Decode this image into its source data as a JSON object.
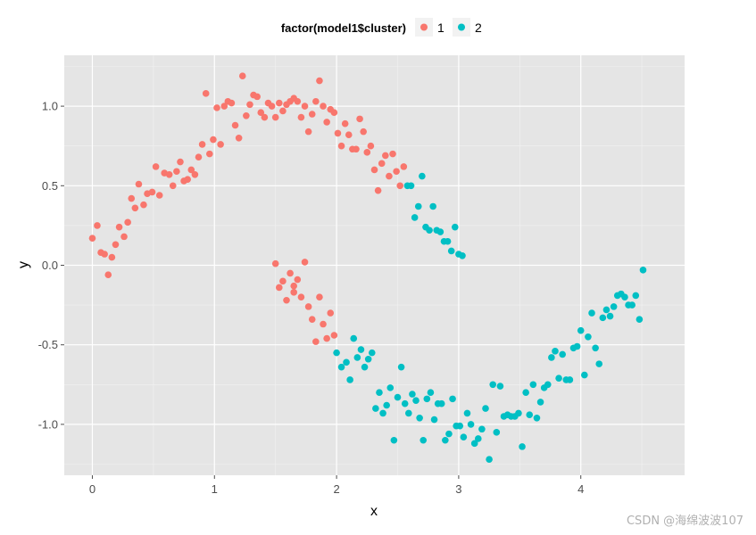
{
  "chart_data": {
    "type": "scatter",
    "xlabel": "x",
    "ylabel": "y",
    "xlim": [
      -0.23,
      4.85
    ],
    "ylim": [
      -1.32,
      1.32
    ],
    "x_ticks": [
      0,
      1,
      2,
      3,
      4
    ],
    "y_ticks": [
      -1.0,
      -0.5,
      0.0,
      0.5,
      1.0
    ],
    "x_tick_labels": [
      "0",
      "1",
      "2",
      "3",
      "4"
    ],
    "y_tick_labels": [
      "-1.0",
      "-0.5",
      "0.0",
      "0.5",
      "1.0"
    ],
    "grid": true,
    "legend": {
      "title": "factor(model1$cluster)",
      "placement": "top",
      "entries": [
        "1",
        "2"
      ]
    },
    "colors": {
      "1": "#f8766d",
      "2": "#00bfc4"
    },
    "series": [
      {
        "name": "1",
        "points": [
          [
            0.0,
            0.17
          ],
          [
            0.04,
            0.25
          ],
          [
            0.07,
            0.08
          ],
          [
            0.1,
            0.07
          ],
          [
            0.13,
            -0.06
          ],
          [
            0.16,
            0.05
          ],
          [
            0.19,
            0.13
          ],
          [
            0.22,
            0.24
          ],
          [
            0.26,
            0.18
          ],
          [
            0.29,
            0.27
          ],
          [
            0.32,
            0.42
          ],
          [
            0.35,
            0.36
          ],
          [
            0.38,
            0.51
          ],
          [
            0.42,
            0.38
          ],
          [
            0.45,
            0.45
          ],
          [
            0.49,
            0.46
          ],
          [
            0.52,
            0.62
          ],
          [
            0.55,
            0.44
          ],
          [
            0.59,
            0.58
          ],
          [
            0.63,
            0.57
          ],
          [
            0.66,
            0.5
          ],
          [
            0.69,
            0.59
          ],
          [
            0.72,
            0.65
          ],
          [
            0.75,
            0.53
          ],
          [
            0.78,
            0.54
          ],
          [
            0.81,
            0.6
          ],
          [
            0.84,
            0.57
          ],
          [
            0.87,
            0.68
          ],
          [
            0.9,
            0.76
          ],
          [
            0.93,
            1.08
          ],
          [
            0.96,
            0.7
          ],
          [
            0.99,
            0.79
          ],
          [
            1.02,
            0.99
          ],
          [
            1.05,
            0.76
          ],
          [
            1.08,
            1.0
          ],
          [
            1.11,
            1.03
          ],
          [
            1.14,
            1.02
          ],
          [
            1.17,
            0.88
          ],
          [
            1.2,
            0.8
          ],
          [
            1.23,
            1.19
          ],
          [
            1.26,
            0.94
          ],
          [
            1.29,
            1.01
          ],
          [
            1.32,
            1.07
          ],
          [
            1.35,
            1.06
          ],
          [
            1.38,
            0.96
          ],
          [
            1.41,
            0.93
          ],
          [
            1.44,
            1.02
          ],
          [
            1.47,
            1.0
          ],
          [
            1.5,
            0.93
          ],
          [
            1.53,
            1.02
          ],
          [
            1.56,
            0.97
          ],
          [
            1.59,
            1.01
          ],
          [
            1.62,
            1.03
          ],
          [
            1.65,
            1.05
          ],
          [
            1.68,
            1.03
          ],
          [
            1.71,
            0.93
          ],
          [
            1.74,
            1.0
          ],
          [
            1.77,
            0.84
          ],
          [
            1.8,
            0.95
          ],
          [
            1.83,
            1.03
          ],
          [
            1.86,
            1.16
          ],
          [
            1.89,
            1.0
          ],
          [
            1.92,
            0.9
          ],
          [
            1.95,
            0.98
          ],
          [
            1.98,
            0.96
          ],
          [
            2.01,
            0.83
          ],
          [
            2.04,
            0.75
          ],
          [
            2.07,
            0.89
          ],
          [
            2.1,
            0.82
          ],
          [
            2.13,
            0.73
          ],
          [
            2.16,
            0.73
          ],
          [
            2.19,
            0.92
          ],
          [
            2.22,
            0.84
          ],
          [
            2.25,
            0.71
          ],
          [
            2.28,
            0.75
          ],
          [
            2.31,
            0.6
          ],
          [
            2.34,
            0.47
          ],
          [
            2.37,
            0.64
          ],
          [
            2.4,
            0.69
          ],
          [
            2.43,
            0.56
          ],
          [
            2.46,
            0.7
          ],
          [
            2.49,
            0.59
          ],
          [
            2.52,
            0.5
          ],
          [
            2.55,
            0.62
          ],
          [
            1.5,
            0.01
          ],
          [
            1.53,
            -0.14
          ],
          [
            1.56,
            -0.1
          ],
          [
            1.59,
            -0.22
          ],
          [
            1.62,
            -0.05
          ],
          [
            1.65,
            -0.17
          ],
          [
            1.68,
            -0.09
          ],
          [
            1.71,
            -0.2
          ],
          [
            1.74,
            0.02
          ],
          [
            1.77,
            -0.26
          ],
          [
            1.8,
            -0.34
          ],
          [
            1.83,
            -0.48
          ],
          [
            1.86,
            -0.2
          ],
          [
            1.89,
            -0.37
          ],
          [
            1.92,
            -0.46
          ],
          [
            1.95,
            -0.3
          ],
          [
            1.98,
            -0.44
          ],
          [
            1.65,
            -0.13
          ]
        ]
      },
      {
        "name": "2",
        "points": [
          [
            2.58,
            0.5
          ],
          [
            2.61,
            0.5
          ],
          [
            2.64,
            0.3
          ],
          [
            2.67,
            0.37
          ],
          [
            2.7,
            0.56
          ],
          [
            2.73,
            0.24
          ],
          [
            2.76,
            0.22
          ],
          [
            2.79,
            0.37
          ],
          [
            2.82,
            0.22
          ],
          [
            2.85,
            0.21
          ],
          [
            2.88,
            0.15
          ],
          [
            2.91,
            0.15
          ],
          [
            2.94,
            0.09
          ],
          [
            2.97,
            0.24
          ],
          [
            3.0,
            0.07
          ],
          [
            3.03,
            0.06
          ],
          [
            2.0,
            -0.55
          ],
          [
            2.04,
            -0.64
          ],
          [
            2.08,
            -0.61
          ],
          [
            2.11,
            -0.72
          ],
          [
            2.14,
            -0.46
          ],
          [
            2.17,
            -0.58
          ],
          [
            2.2,
            -0.53
          ],
          [
            2.23,
            -0.64
          ],
          [
            2.26,
            -0.59
          ],
          [
            2.29,
            -0.55
          ],
          [
            2.32,
            -0.9
          ],
          [
            2.35,
            -0.8
          ],
          [
            2.38,
            -0.93
          ],
          [
            2.41,
            -0.88
          ],
          [
            2.44,
            -0.77
          ],
          [
            2.47,
            -1.1
          ],
          [
            2.5,
            -0.83
          ],
          [
            2.53,
            -0.64
          ],
          [
            2.56,
            -0.87
          ],
          [
            2.59,
            -0.93
          ],
          [
            2.62,
            -0.81
          ],
          [
            2.65,
            -0.85
          ],
          [
            2.68,
            -0.96
          ],
          [
            2.71,
            -1.1
          ],
          [
            2.74,
            -0.84
          ],
          [
            2.77,
            -0.8
          ],
          [
            2.8,
            -0.97
          ],
          [
            2.83,
            -0.87
          ],
          [
            2.86,
            -0.87
          ],
          [
            2.89,
            -1.1
          ],
          [
            2.92,
            -1.06
          ],
          [
            2.95,
            -0.84
          ],
          [
            2.98,
            -1.01
          ],
          [
            3.01,
            -1.01
          ],
          [
            3.04,
            -1.08
          ],
          [
            3.07,
            -0.93
          ],
          [
            3.1,
            -1.0
          ],
          [
            3.13,
            -1.12
          ],
          [
            3.16,
            -1.09
          ],
          [
            3.19,
            -1.03
          ],
          [
            3.22,
            -0.9
          ],
          [
            3.25,
            -1.22
          ],
          [
            3.28,
            -0.75
          ],
          [
            3.31,
            -1.05
          ],
          [
            3.34,
            -0.76
          ],
          [
            3.37,
            -0.95
          ],
          [
            3.4,
            -0.94
          ],
          [
            3.43,
            -0.95
          ],
          [
            3.46,
            -0.95
          ],
          [
            3.49,
            -0.93
          ],
          [
            3.52,
            -1.14
          ],
          [
            3.55,
            -0.8
          ],
          [
            3.58,
            -0.94
          ],
          [
            3.61,
            -0.75
          ],
          [
            3.64,
            -0.96
          ],
          [
            3.67,
            -0.86
          ],
          [
            3.7,
            -0.77
          ],
          [
            3.73,
            -0.75
          ],
          [
            3.76,
            -0.58
          ],
          [
            3.79,
            -0.54
          ],
          [
            3.82,
            -0.71
          ],
          [
            3.85,
            -0.56
          ],
          [
            3.88,
            -0.72
          ],
          [
            3.91,
            -0.72
          ],
          [
            3.94,
            -0.52
          ],
          [
            3.97,
            -0.51
          ],
          [
            4.0,
            -0.41
          ],
          [
            4.03,
            -0.69
          ],
          [
            4.06,
            -0.45
          ],
          [
            4.09,
            -0.3
          ],
          [
            4.12,
            -0.52
          ],
          [
            4.15,
            -0.62
          ],
          [
            4.18,
            -0.33
          ],
          [
            4.21,
            -0.28
          ],
          [
            4.24,
            -0.32
          ],
          [
            4.27,
            -0.26
          ],
          [
            4.3,
            -0.19
          ],
          [
            4.33,
            -0.18
          ],
          [
            4.36,
            -0.2
          ],
          [
            4.39,
            -0.25
          ],
          [
            4.42,
            -0.25
          ],
          [
            4.45,
            -0.19
          ],
          [
            4.48,
            -0.34
          ],
          [
            4.51,
            -0.03
          ]
        ]
      }
    ]
  },
  "watermark": "CSDN @海绵波波107"
}
